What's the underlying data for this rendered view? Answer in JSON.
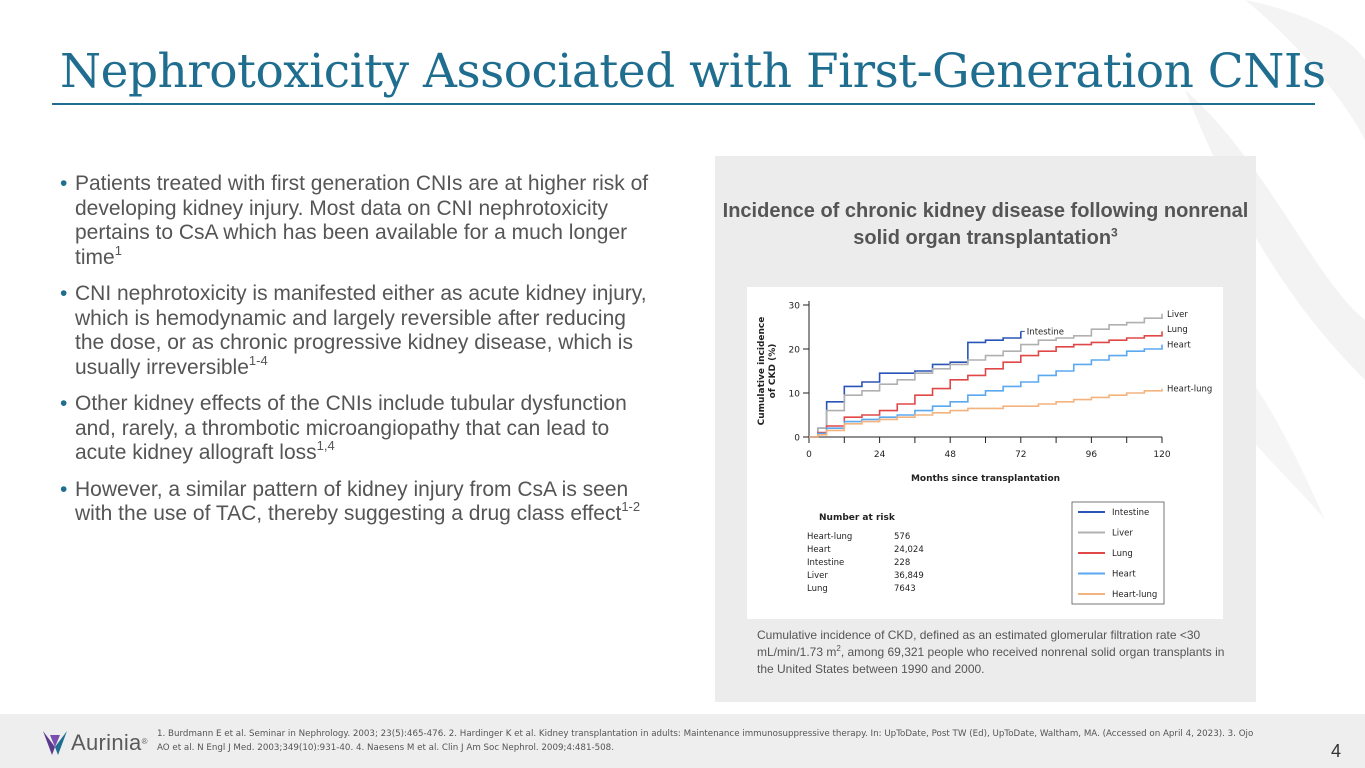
{
  "title": "Nephrotoxicity Associated with First-Generation CNIs",
  "bullets": [
    {
      "text": "Patients treated with first generation CNIs are at higher risk of developing kidney injury. Most data on CNI nephrotoxicity pertains to CsA which has been available for a much longer time",
      "sup": "1"
    },
    {
      "text": "CNI nephrotoxicity is manifested either as acute kidney injury, which is hemodynamic and largely reversible after reducing the dose, or as chronic progressive kidney disease, which is usually irreversible",
      "sup": "1-4"
    },
    {
      "text": "Other kidney effects of the CNIs include tubular dysfunction and, rarely, a thrombotic microangiopathy that can lead to acute kidney allograft loss",
      "sup": "1,4"
    },
    {
      "text": "However, a similar pattern of kidney injury from CsA is seen with the use of TAC, thereby suggesting a drug class effect",
      "sup": "1-2"
    }
  ],
  "panel": {
    "title": "Incidence of chronic kidney disease following nonrenal solid organ transplantation",
    "title_sup": "3",
    "caption_part1": "Cumulative incidence of CKD, defined as an estimated glomerular filtration rate <30 mL/min/1.73 m",
    "caption_sup": "2",
    "caption_part2": ", among 69,321 people who received nonrenal solid organ transplants in the United States between 1990 and 2000."
  },
  "chart_data": {
    "type": "line",
    "xlabel": "Months since transplantation",
    "ylabel": "Cumulative incidence of CKD (%)",
    "ylabel_lines": [
      "Cumulative incidence",
      "of CKD (%)"
    ],
    "xlim": [
      0,
      120
    ],
    "ylim": [
      0,
      30
    ],
    "xticks": [
      0,
      24,
      48,
      72,
      96,
      120
    ],
    "yticks": [
      0,
      10,
      20,
      30
    ],
    "x": [
      0,
      3,
      6,
      12,
      18,
      24,
      30,
      36,
      42,
      48,
      54,
      60,
      66,
      72,
      78,
      84,
      90,
      96,
      102,
      108,
      114,
      120
    ],
    "series": [
      {
        "name": "Intestine",
        "color": "#2a55b8",
        "values": [
          0,
          2,
          8,
          11.5,
          12.5,
          14.5,
          14.5,
          15,
          16.5,
          17,
          21.5,
          22,
          22.5,
          24,
          null,
          null,
          null,
          null,
          null,
          null,
          null,
          null
        ]
      },
      {
        "name": "Liver",
        "color": "#b0b0b0",
        "values": [
          0,
          2,
          6,
          9.5,
          10.5,
          12,
          13,
          14.5,
          15.5,
          16.5,
          17.5,
          18.5,
          19.5,
          21,
          22,
          22.5,
          23,
          24.5,
          25.5,
          26,
          27,
          28
        ]
      },
      {
        "name": "Lung",
        "color": "#e04848",
        "values": [
          0,
          1,
          2.5,
          4.5,
          5,
          6,
          7.5,
          9.5,
          11,
          13,
          14,
          15.5,
          17,
          18.5,
          19.5,
          20.5,
          21,
          21.5,
          22,
          22.5,
          23,
          24
        ]
      },
      {
        "name": "Heart",
        "color": "#5aa8f0",
        "values": [
          0,
          0.8,
          2,
          3.5,
          4,
          4.5,
          5,
          6,
          7,
          8,
          9.5,
          10.5,
          11.5,
          12.5,
          14,
          15,
          16.5,
          17.5,
          18.5,
          19.5,
          20,
          21
        ]
      },
      {
        "name": "Heart-lung",
        "color": "#f3b37e",
        "values": [
          0,
          0.5,
          1.5,
          3,
          3.5,
          4,
          4.5,
          5,
          5.5,
          6,
          6.5,
          6.5,
          7,
          7,
          7.5,
          8,
          8.5,
          9,
          9.5,
          10,
          10.5,
          11
        ]
      }
    ],
    "line_labels": [
      "Intestine",
      "Liver",
      "Lung",
      "Heart",
      "Heart-lung"
    ],
    "risk_table": {
      "title": "Number at risk",
      "rows": [
        {
          "label": "Heart-lung",
          "value": "576"
        },
        {
          "label": "Heart",
          "value": "24,024"
        },
        {
          "label": "Intestine",
          "value": "228"
        },
        {
          "label": "Liver",
          "value": "36,849"
        },
        {
          "label": "Lung",
          "value": "7643"
        }
      ]
    },
    "legend": {
      "position": "bottom-right",
      "entries": [
        "Intestine",
        "Liver",
        "Lung",
        "Heart",
        "Heart-lung"
      ]
    }
  },
  "footer": {
    "logo_text": "Aurinia",
    "logo_mark": "®",
    "references": "1. Burdmann E et al. Seminar in Nephrology. 2003; 23(5):465-476. 2. Hardinger K et al. Kidney transplantation in adults: Maintenance immunosuppressive therapy. In: UpToDate, Post TW (Ed), UpToDate, Waltham, MA. (Accessed on April 4, 2023). 3. Ojo AO et al. N Engl J Med. 2003;349(10):931-40. 4. Naesens M et al. Clin J Am Soc Nephrol. 2009;4:481-508.",
    "page_number": "4"
  },
  "colors": {
    "title": "#1f6e8f",
    "text": "#555555",
    "panel_bg": "#ececec",
    "footer_bg": "#eeeeee",
    "logo_purple": "#5b3a8c",
    "logo_blue": "#1f6e8f"
  }
}
